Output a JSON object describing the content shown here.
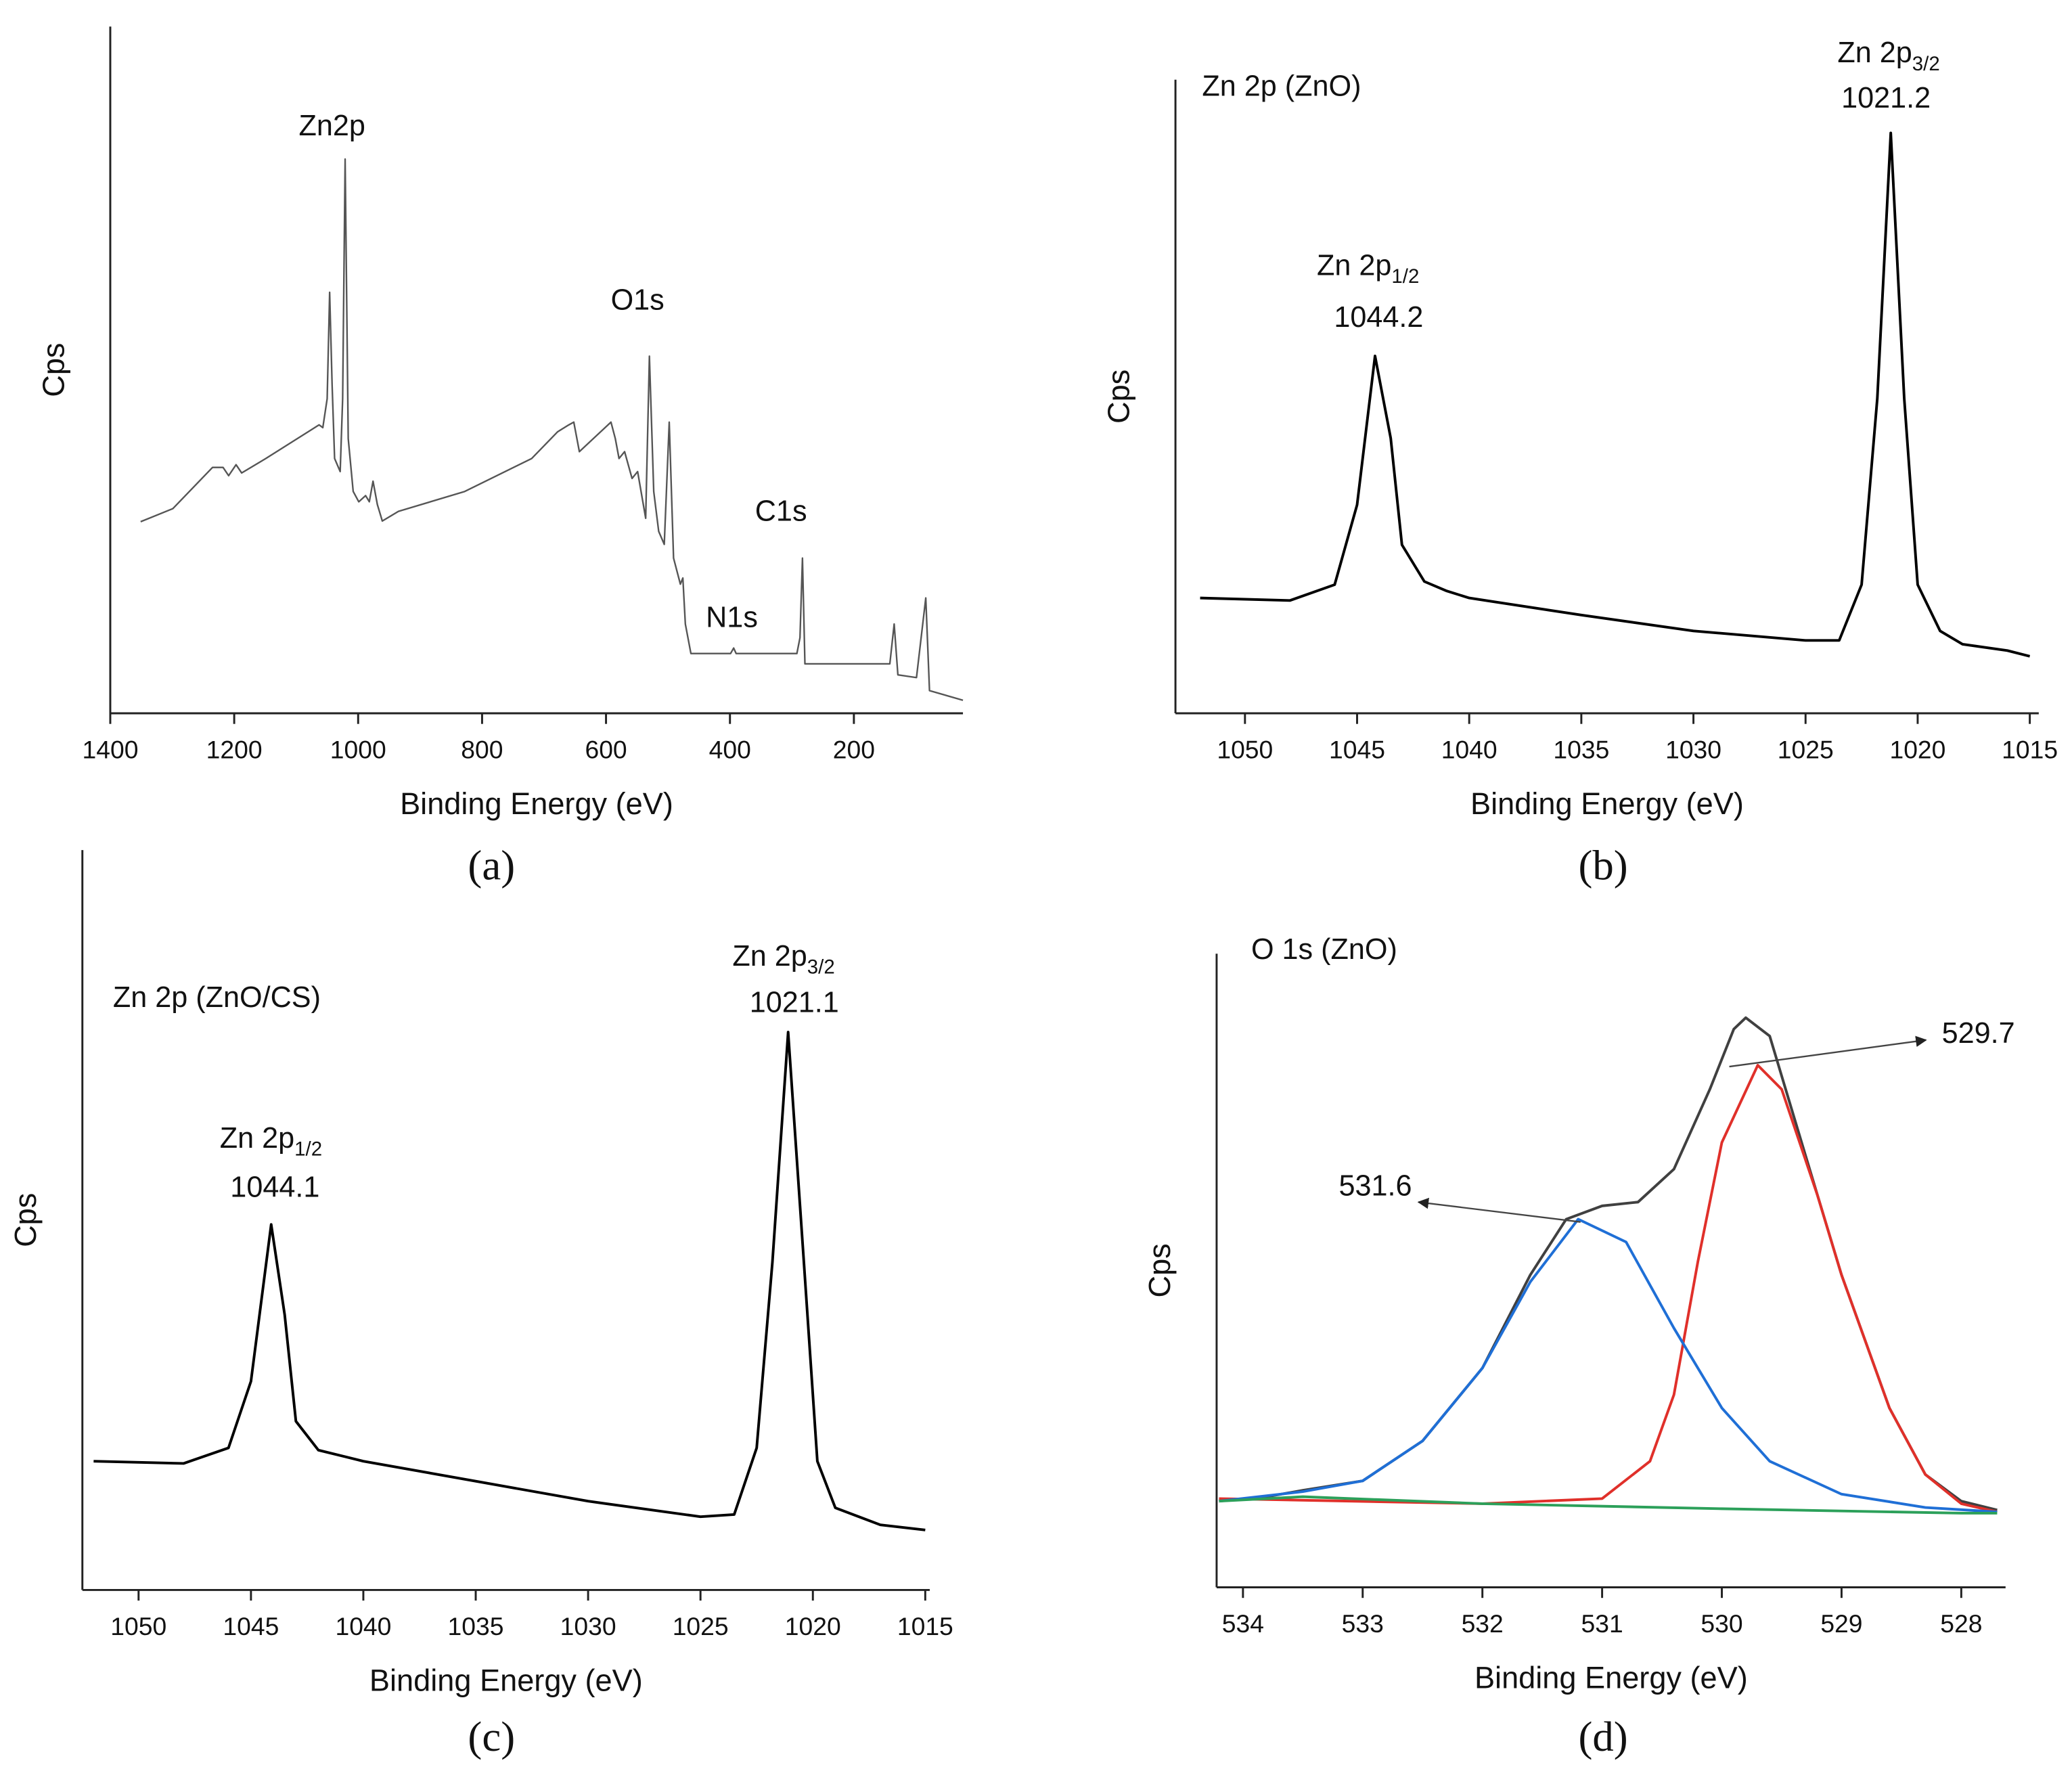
{
  "chart_data": [
    {
      "type": "line",
      "label": "(a)",
      "xlabel": "Binding Energy (eV)",
      "ylabel": "Cps",
      "xlim": [
        1400,
        24
      ],
      "xticks": [
        1400,
        1200,
        1000,
        800,
        600,
        400,
        200
      ],
      "ylim": [
        0,
        100
      ],
      "annotations": [
        "Zn2p",
        "O1s",
        "C1s",
        "N1s"
      ],
      "x": [
        1351,
        1299,
        1235,
        1218,
        1209,
        1197,
        1188,
        1149,
        1063,
        1057,
        1050,
        1046,
        1042,
        1038,
        1029,
        1025,
        1021,
        1016,
        1008,
        999,
        988,
        982,
        976,
        969,
        961,
        935,
        828,
        720,
        678,
        660,
        652,
        643,
        592,
        585,
        579,
        570,
        558,
        549,
        536,
        530,
        523,
        515,
        506,
        498,
        491,
        480,
        476,
        472,
        463,
        399,
        394,
        390,
        292,
        287,
        283,
        279,
        142,
        135,
        129,
        99,
        84,
        78,
        24
      ],
      "series": [
        {
          "color": "#555555",
          "values": [
            27.9,
            29.8,
            35.8,
            35.8,
            34.6,
            36.2,
            35.0,
            37.1,
            42.0,
            41.6,
            45.8,
            61.3,
            47.8,
            37.1,
            35.2,
            45.8,
            80.7,
            40.0,
            32.3,
            30.8,
            31.7,
            30.8,
            33.8,
            30.4,
            28.0,
            29.4,
            32.3,
            37.1,
            41.0,
            42.0,
            42.4,
            38.1,
            42.4,
            40.0,
            37.1,
            38.1,
            34.2,
            35.2,
            28.4,
            52.0,
            32.3,
            26.5,
            24.6,
            42.4,
            22.6,
            18.8,
            19.7,
            13.0,
            8.7,
            8.7,
            9.5,
            8.7,
            8.7,
            11.0,
            22.6,
            7.2,
            7.2,
            13.0,
            5.6,
            5.2,
            16.8,
            3.3,
            1.9
          ]
        }
      ]
    },
    {
      "type": "line",
      "label": "(b)",
      "title": "Zn 2p  (ZnO)",
      "xlabel": "Binding Energy (eV)",
      "ylabel": "Cps",
      "xlim": [
        1053.1,
        1014.6
      ],
      "xticks": [
        1050,
        1045,
        1040,
        1035,
        1030,
        1025,
        1020,
        1015
      ],
      "ylim": [
        0,
        100
      ],
      "peaks": [
        {
          "name": "Zn 2p",
          "sub": "1/2",
          "label": "1044.2"
        },
        {
          "name": "Zn 2p",
          "sub": "3/2",
          "label": "1021.2"
        }
      ],
      "x": [
        1052,
        1048,
        1046,
        1045,
        1044.2,
        1043.5,
        1043,
        1042,
        1041,
        1040,
        1035,
        1030,
        1025,
        1023.5,
        1022.5,
        1021.8,
        1021.2,
        1020.6,
        1020,
        1019,
        1018,
        1016,
        1015
      ],
      "series": [
        {
          "color": "#000000",
          "values": [
            18.2,
            17.8,
            20.3,
            32.9,
            56.4,
            43.4,
            26.6,
            20.8,
            19.3,
            18.2,
            15.5,
            13.0,
            11.5,
            11.5,
            20.3,
            49.7,
            91.6,
            49.7,
            20.3,
            13.0,
            10.9,
            9.9,
            9.0
          ]
        }
      ]
    },
    {
      "type": "line",
      "label": "(c)",
      "title": "Zn 2p (ZnO/CS)",
      "xlabel": "Binding Energy (eV)",
      "ylabel": "Cps",
      "xlim": [
        1052.5,
        1014.8
      ],
      "xticks": [
        1050,
        1045,
        1040,
        1035,
        1030,
        1025,
        1020,
        1015
      ],
      "ylim": [
        0,
        100
      ],
      "peaks": [
        {
          "name": "Zn 2p",
          "sub": "1/2",
          "label": "1044.1"
        },
        {
          "name": "Zn 2p",
          "sub": "3/2",
          "label": "1021.1"
        }
      ],
      "x": [
        1052,
        1048,
        1046,
        1045,
        1044.1,
        1043.5,
        1043,
        1042,
        1040,
        1035,
        1030,
        1025,
        1023.5,
        1022.5,
        1021.8,
        1021.1,
        1020.4,
        1019.8,
        1019,
        1017,
        1015
      ],
      "series": [
        {
          "color": "#000000",
          "values": [
            17.4,
            17.1,
            19.2,
            28.2,
            49.4,
            37.2,
            22.8,
            18.9,
            17.4,
            14.7,
            12.0,
            9.9,
            10.2,
            19.2,
            44.3,
            75.4,
            44.3,
            17.4,
            11.1,
            8.8,
            8.1
          ]
        }
      ]
    },
    {
      "type": "line",
      "label": "(d)",
      "title": "O 1s  (ZnO)",
      "xlabel": "Binding Energy (eV)",
      "ylabel": "Cps",
      "xlim": [
        534.22,
        527.63
      ],
      "xticks": [
        534,
        533,
        532,
        531,
        530,
        529,
        528
      ],
      "ylim": [
        0,
        100
      ],
      "annotations": [
        "531.6",
        "529.7"
      ],
      "series": [
        {
          "color": "#404040",
          "x": [
            534.2,
            533.8,
            533.5,
            533,
            532.5,
            532,
            531.6,
            531.3,
            531,
            530.7,
            530.4,
            530.1,
            529.9,
            529.8,
            529.6,
            529.3,
            529,
            528.6,
            528.3,
            528,
            527.7
          ],
          "values": [
            13.6,
            14.3,
            15.3,
            16.8,
            23.1,
            34.6,
            49.3,
            58.1,
            60.2,
            60.8,
            66.0,
            78.6,
            88.1,
            89.9,
            87.0,
            68.1,
            49.3,
            28.3,
            17.8,
            13.6,
            12.2
          ]
        },
        {
          "color": "#e0302a",
          "x": [
            534.2,
            532,
            531,
            530.6,
            530.4,
            530.2,
            530,
            529.7,
            529.5,
            529.2,
            529,
            528.6,
            528.3,
            528,
            527.7
          ],
          "values": [
            14.0,
            13.2,
            14.0,
            19.9,
            30.4,
            51.4,
            70.2,
            82.4,
            78.6,
            61.8,
            49.3,
            28.3,
            17.8,
            13.2,
            11.9
          ]
        },
        {
          "color": "#1f6fd6",
          "x": [
            534.2,
            533.5,
            533,
            532.5,
            532,
            531.6,
            531.2,
            530.8,
            530.4,
            530,
            529.6,
            529,
            528.3,
            527.7
          ],
          "values": [
            13.6,
            15.1,
            16.8,
            23.1,
            34.6,
            48.2,
            58.1,
            54.5,
            40.9,
            28.3,
            19.9,
            14.7,
            12.6,
            11.9
          ]
        },
        {
          "color": "#2ca05a",
          "x": [
            534.2,
            533.5,
            532,
            530,
            528,
            527.7
          ],
          "values": [
            13.6,
            14.3,
            13.2,
            12.4,
            11.7,
            11.7
          ]
        }
      ]
    }
  ]
}
